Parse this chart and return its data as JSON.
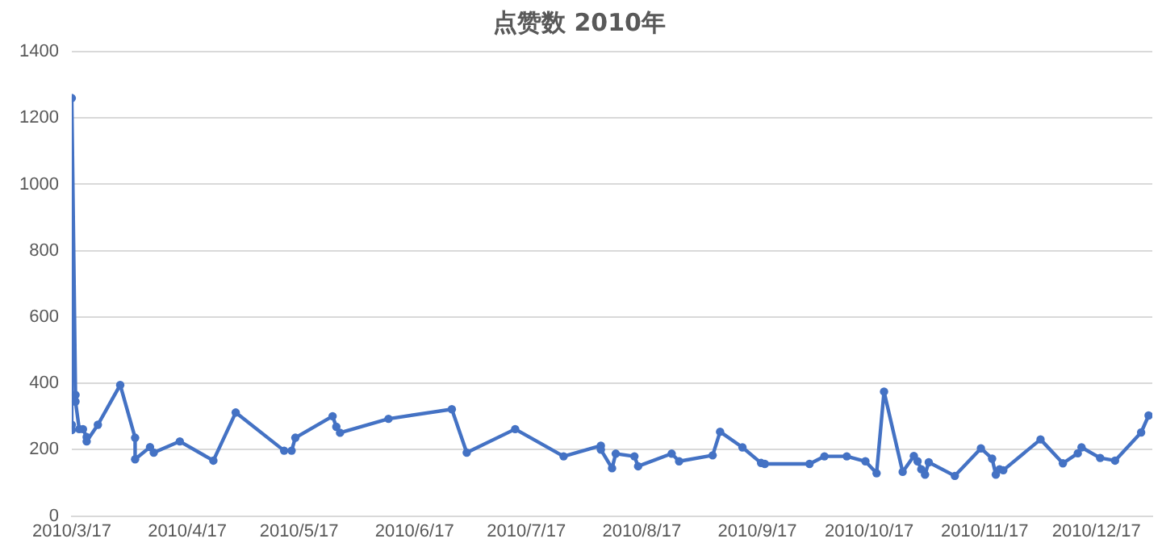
{
  "chart_data": {
    "type": "line",
    "title": "点赞数 2010年",
    "x": [
      "2010-03-17",
      "2010-03-17",
      "2010-03-17",
      "2010-03-18",
      "2010-03-18",
      "2010-03-19",
      "2010-03-20",
      "2010-03-21",
      "2010-03-21",
      "2010-03-24",
      "2010-03-30",
      "2010-04-03",
      "2010-04-03",
      "2010-04-07",
      "2010-04-08",
      "2010-04-15",
      "2010-04-24",
      "2010-04-30",
      "2010-05-13",
      "2010-05-15",
      "2010-05-16",
      "2010-05-26",
      "2010-05-27",
      "2010-05-28",
      "2010-06-10",
      "2010-06-27",
      "2010-07-01",
      "2010-07-14",
      "2010-07-27",
      "2010-08-06",
      "2010-08-06",
      "2010-08-09",
      "2010-08-10",
      "2010-08-15",
      "2010-08-16",
      "2010-08-25",
      "2010-08-27",
      "2010-09-05",
      "2010-09-07",
      "2010-09-13",
      "2010-09-18",
      "2010-09-19",
      "2010-10-01",
      "2010-10-05",
      "2010-10-11",
      "2010-10-16",
      "2010-10-19",
      "2010-10-21",
      "2010-10-26",
      "2010-10-29",
      "2010-10-30",
      "2010-10-31",
      "2010-11-01",
      "2010-11-02",
      "2010-11-09",
      "2010-11-16",
      "2010-11-19",
      "2010-11-20",
      "2010-11-21",
      "2010-11-22",
      "2010-12-02",
      "2010-12-08",
      "2010-12-12",
      "2010-12-13",
      "2010-12-18",
      "2010-12-22",
      "2010-12-29",
      "2010-12-31"
    ],
    "series": [
      {
        "color": "#4472c4",
        "values": [
          275,
          259,
          1260,
          365,
          345,
          262,
          262,
          238,
          225,
          275,
          395,
          236,
          171,
          208,
          191,
          225,
          167,
          312,
          197,
          197,
          236,
          301,
          269,
          251,
          293,
          322,
          191,
          262,
          180,
          212,
          200,
          144,
          188,
          180,
          150,
          188,
          165,
          183,
          254,
          207,
          160,
          157,
          157,
          180,
          180,
          165,
          129,
          375,
          133,
          181,
          165,
          141,
          125,
          162,
          121,
          204,
          173,
          125,
          141,
          138,
          231,
          159,
          189,
          207,
          175,
          167,
          252,
          303
        ]
      }
    ],
    "xlim": [
      "2010-03-17",
      "2011-01-01"
    ],
    "xticks": [
      {
        "value": "2010-03-17",
        "label": "2010/3/17"
      },
      {
        "value": "2010-04-17",
        "label": "2010/4/17"
      },
      {
        "value": "2010-05-17",
        "label": "2010/5/17"
      },
      {
        "value": "2010-06-17",
        "label": "2010/6/17"
      },
      {
        "value": "2010-07-17",
        "label": "2010/7/17"
      },
      {
        "value": "2010-08-17",
        "label": "2010/8/17"
      },
      {
        "value": "2010-09-17",
        "label": "2010/9/17"
      },
      {
        "value": "2010-10-17",
        "label": "2010/10/17"
      },
      {
        "value": "2010-11-17",
        "label": "2010/11/17"
      },
      {
        "value": "2010-12-17",
        "label": "2010/12/17"
      }
    ],
    "ylim": [
      0,
      1400
    ],
    "yticks": [
      0,
      200,
      400,
      600,
      800,
      1000,
      1200,
      1400
    ],
    "grid": "y",
    "marker": "circle",
    "line_style": "solid",
    "legend": false
  }
}
